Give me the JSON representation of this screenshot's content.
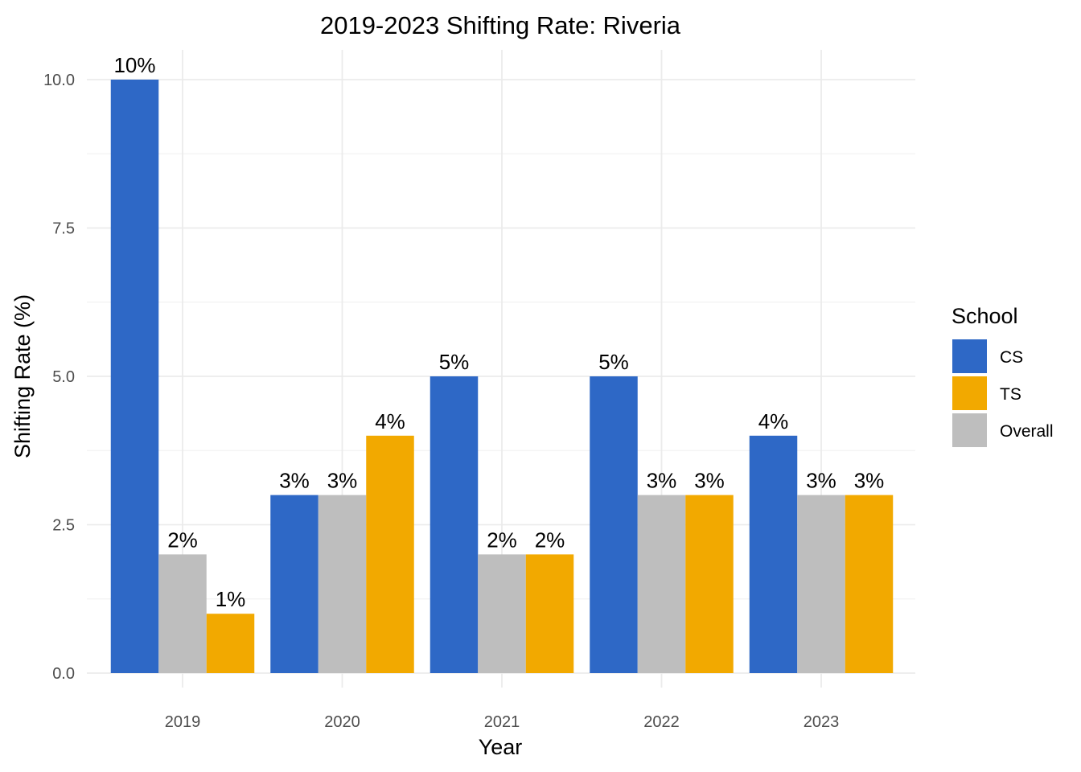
{
  "chart_data": {
    "type": "bar",
    "title": "2019-2023 Shifting Rate: Riveria",
    "xlabel": "Year",
    "ylabel": "Shifting Rate (%)",
    "categories": [
      "2019",
      "2020",
      "2021",
      "2022",
      "2023"
    ],
    "ylim": [
      0,
      10.5
    ],
    "yticks": [
      "0.0",
      "2.5",
      "5.0",
      "7.5",
      "10.0"
    ],
    "grid": true,
    "legend_position": "right",
    "legend_title": "School",
    "series": [
      {
        "name": "CS",
        "color": "#2E68C6",
        "values": [
          10,
          3,
          5,
          5,
          4
        ],
        "labels": [
          "10%",
          "3%",
          "5%",
          "5%",
          "4%"
        ]
      },
      {
        "name": "Overall",
        "color": "#BEBEBE",
        "values": [
          2,
          3,
          2,
          3,
          3
        ],
        "labels": [
          "2%",
          "3%",
          "2%",
          "3%",
          "3%"
        ]
      },
      {
        "name": "TS",
        "color": "#F2A900",
        "values": [
          1,
          4,
          2,
          3,
          3
        ],
        "labels": [
          "1%",
          "4%",
          "2%",
          "3%",
          "3%"
        ]
      }
    ],
    "legend_order": [
      "CS",
      "TS",
      "Overall"
    ]
  }
}
